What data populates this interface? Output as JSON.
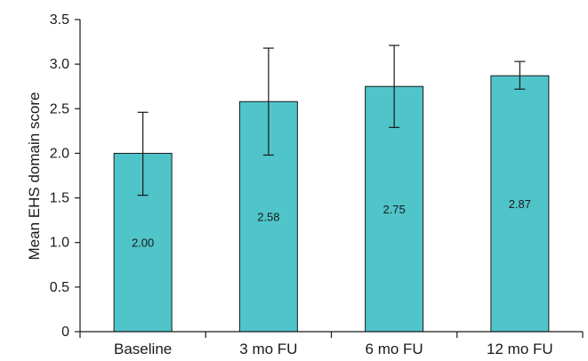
{
  "chart_data": {
    "type": "bar",
    "categories": [
      "Baseline",
      "3 mo FU",
      "6 mo FU",
      "12 mo FU"
    ],
    "values": [
      2.0,
      2.58,
      2.75,
      2.87
    ],
    "data_labels": [
      "2.00",
      "2.58",
      "2.75",
      "2.87"
    ],
    "error_low": [
      1.53,
      1.98,
      2.29,
      2.72
    ],
    "error_high": [
      2.46,
      3.18,
      3.21,
      3.03
    ],
    "ylabel": "Mean EHS domain score",
    "xlabel": "",
    "ylim": [
      0,
      3.5
    ],
    "yticks": [
      "0",
      "0.5",
      "1.0",
      "1.5",
      "2.0",
      "2.5",
      "3.0",
      "3.5"
    ],
    "bar_color": "#4fc4c9",
    "grid": false
  }
}
